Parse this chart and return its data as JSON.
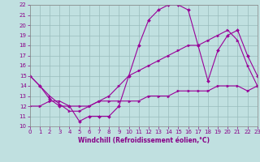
{
  "xlabel": "Windchill (Refroidissement éolien,°C)",
  "xlim": [
    0,
    23
  ],
  "ylim": [
    10,
    22
  ],
  "xticks": [
    0,
    1,
    2,
    3,
    4,
    5,
    6,
    7,
    8,
    9,
    10,
    11,
    12,
    13,
    14,
    15,
    16,
    17,
    18,
    19,
    20,
    21,
    22,
    23
  ],
  "yticks": [
    10,
    11,
    12,
    13,
    14,
    15,
    16,
    17,
    18,
    19,
    20,
    21,
    22
  ],
  "bg_color": "#c0e0e0",
  "line_color": "#990099",
  "grid_color": "#99bbbb",
  "curve1_x": [
    0,
    1,
    2,
    3,
    4,
    5,
    6,
    7,
    8,
    9,
    10,
    11,
    12,
    13,
    14,
    15,
    16,
    17,
    18,
    19,
    20,
    21,
    22,
    23
  ],
  "curve1_y": [
    15.0,
    14.0,
    12.7,
    12.0,
    12.0,
    10.5,
    11.0,
    11.0,
    11.0,
    12.0,
    15.0,
    18.0,
    20.5,
    21.5,
    22.0,
    22.0,
    21.5,
    18.0,
    14.5,
    17.5,
    19.0,
    19.5,
    17.0,
    15.0
  ],
  "curve2_x": [
    0,
    1,
    2,
    3,
    4,
    5,
    6,
    7,
    8,
    9,
    10,
    11,
    12,
    13,
    14,
    15,
    16,
    17,
    18,
    19,
    20,
    21,
    22,
    23
  ],
  "curve2_y": [
    15.0,
    14.0,
    13.0,
    12.2,
    11.5,
    11.5,
    12.0,
    12.5,
    13.0,
    14.0,
    15.0,
    15.5,
    16.0,
    16.5,
    17.0,
    17.5,
    18.0,
    18.0,
    18.5,
    19.0,
    19.5,
    18.5,
    16.0,
    14.0
  ],
  "curve3_x": [
    0,
    1,
    2,
    3,
    4,
    5,
    6,
    7,
    8,
    9,
    10,
    11,
    12,
    13,
    14,
    15,
    16,
    17,
    18,
    19,
    20,
    21,
    22,
    23
  ],
  "curve3_y": [
    12.0,
    12.0,
    12.5,
    12.5,
    12.0,
    12.0,
    12.0,
    12.5,
    12.5,
    12.5,
    12.5,
    12.5,
    13.0,
    13.0,
    13.0,
    13.5,
    13.5,
    13.5,
    13.5,
    14.0,
    14.0,
    14.0,
    13.5,
    14.0
  ],
  "xlabel_fontsize": 5.5,
  "tick_fontsize": 5.0,
  "tick_color": "#880088",
  "xlabel_color": "#880088"
}
